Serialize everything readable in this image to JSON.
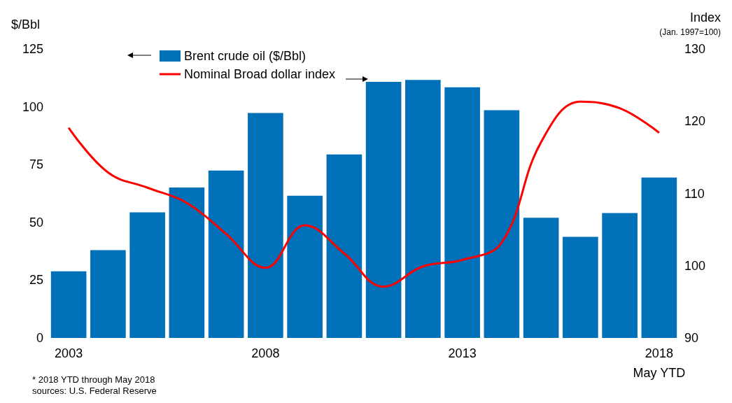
{
  "chart_data": {
    "type": "bar",
    "ylabel": "$/Bbl",
    "y2label": "Index\n(Jan. 1997=100)",
    "categories": [
      "2003",
      null,
      null,
      null,
      null,
      "2008",
      null,
      null,
      null,
      null,
      "2013",
      null,
      null,
      null,
      null,
      "2018\nMay YTD"
    ],
    "series": [
      {
        "name": "Brent crude oil ($/Bbl)",
        "color": "#0070b8",
        "values": [
          28.8,
          38.0,
          54.3,
          65.1,
          72.4,
          97.3,
          61.5,
          79.4,
          110.8,
          111.6,
          108.4,
          98.5,
          52.0,
          43.7,
          54.0,
          69.4
        ]
      },
      {
        "name": "Nominal Broad dollar index",
        "type": "line",
        "axis": "y2",
        "color": "#ff0000",
        "line_style": "solid",
        "marker": "none",
        "values": [
          119.1,
          112.9,
          110.8,
          108.7,
          104.4,
          99.7,
          105.6,
          101.7,
          97.1,
          99.9,
          100.8,
          103.2,
          117.1,
          122.7,
          121.8,
          118.4
        ]
      }
    ],
    "ylim": [
      0,
      125
    ],
    "yticks": [
      0,
      25,
      50,
      75,
      100,
      125
    ],
    "y2lim": [
      90,
      130
    ],
    "y2ticks": [
      90,
      100,
      110,
      120,
      130
    ],
    "grid": false,
    "legend": "top left",
    "annotations": [
      "* 2018 YTD through May 2018",
      "sources: U.S. Federal Reserve"
    ]
  }
}
